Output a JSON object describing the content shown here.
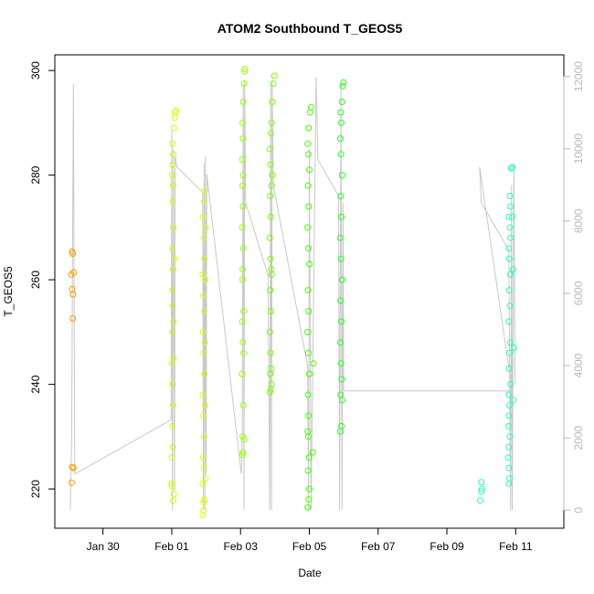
{
  "chart_data": {
    "type": "scatter",
    "title": "ATOM2 Southbound T_GEOS5",
    "xlabel": "Date",
    "ylabel": "T_GEOS5",
    "x_unit": "days",
    "x_ticks": [
      {
        "value": 30,
        "label": "Jan 30"
      },
      {
        "value": 32,
        "label": "Feb 01"
      },
      {
        "value": 34,
        "label": "Feb 03"
      },
      {
        "value": 36,
        "label": "Feb 05"
      },
      {
        "value": 38,
        "label": "Feb 07"
      },
      {
        "value": 40,
        "label": "Feb 09"
      },
      {
        "value": 42,
        "label": "Feb 11"
      }
    ],
    "xlim": [
      28.6,
      43.4
    ],
    "ylim": [
      212.5,
      303
    ],
    "y_ticks": [
      220,
      240,
      260,
      280,
      300
    ],
    "y2lim": [
      -500,
      12600
    ],
    "y2_ticks": [
      0,
      2000,
      4000,
      6000,
      8000,
      10000,
      12000
    ],
    "y2_color": "#b8b8b8",
    "grid": false,
    "series": [
      {
        "color": "#ff9900",
        "points": [
          [
            29.1,
            265.4
          ],
          [
            29.12,
            265.0
          ],
          [
            29.08,
            261.0
          ],
          [
            29.15,
            261.4
          ],
          [
            29.1,
            258.2
          ],
          [
            29.13,
            257.2
          ],
          [
            29.12,
            252.6
          ],
          [
            29.1,
            224.2
          ],
          [
            29.14,
            224.0
          ],
          [
            29.09,
            221.2
          ]
        ]
      },
      {
        "color": "#ccff00",
        "points": [
          [
            31.99,
            221
          ],
          [
            32.01,
            220.5
          ],
          [
            32.0,
            226
          ],
          [
            32.03,
            228
          ],
          [
            32.02,
            232
          ],
          [
            32.04,
            236
          ],
          [
            32.0,
            244
          ],
          [
            32.05,
            245
          ],
          [
            32.02,
            250
          ],
          [
            32.03,
            255
          ],
          [
            32.01,
            258
          ],
          [
            32.04,
            262
          ],
          [
            32.02,
            266
          ],
          [
            32.05,
            270
          ],
          [
            32.03,
            275
          ],
          [
            32.01,
            280
          ],
          [
            32.04,
            284
          ],
          [
            32.02,
            286
          ],
          [
            32.06,
            289
          ],
          [
            32.08,
            291
          ],
          [
            32.1,
            292
          ],
          [
            32.12,
            292.3
          ],
          [
            32.04,
            217.8
          ],
          [
            32.06,
            219
          ],
          [
            32.03,
            240
          ],
          [
            32.05,
            252
          ],
          [
            32.07,
            264
          ],
          [
            32.04,
            278
          ],
          [
            32.02,
            282
          ]
        ]
      },
      {
        "color": "#ddff00",
        "points": [
          [
            32.9,
            215
          ],
          [
            32.92,
            216
          ],
          [
            32.95,
            218
          ],
          [
            32.9,
            221
          ],
          [
            32.93,
            224
          ],
          [
            32.91,
            226
          ],
          [
            32.94,
            230
          ],
          [
            32.92,
            234
          ],
          [
            32.9,
            238
          ],
          [
            32.95,
            242
          ],
          [
            32.93,
            246
          ],
          [
            32.91,
            250
          ],
          [
            32.94,
            254
          ],
          [
            32.92,
            257
          ],
          [
            32.9,
            261
          ],
          [
            32.95,
            264
          ],
          [
            32.93,
            268
          ],
          [
            32.91,
            272
          ],
          [
            32.94,
            275
          ],
          [
            32.96,
            277
          ],
          [
            32.92,
            217.5
          ],
          [
            32.98,
            222
          ],
          [
            32.97,
            236
          ],
          [
            32.96,
            248
          ],
          [
            32.97,
            260
          ],
          [
            32.98,
            270
          ]
        ]
      },
      {
        "color": "#99ff00",
        "points": [
          [
            34.05,
            226.5
          ],
          [
            34.07,
            227
          ],
          [
            34.1,
            229.5
          ],
          [
            34.06,
            230
          ],
          [
            34.08,
            236
          ],
          [
            34.04,
            242
          ],
          [
            34.07,
            248
          ],
          [
            34.05,
            252
          ],
          [
            34.09,
            254
          ],
          [
            34.06,
            260
          ],
          [
            34.08,
            266
          ],
          [
            34.05,
            270
          ],
          [
            34.07,
            274
          ],
          [
            34.06,
            278
          ],
          [
            34.08,
            280
          ],
          [
            34.05,
            283
          ],
          [
            34.07,
            287
          ],
          [
            34.06,
            290
          ],
          [
            34.08,
            294
          ],
          [
            34.1,
            297.5
          ],
          [
            34.12,
            299.8
          ],
          [
            34.13,
            300.3
          ],
          [
            34.06,
            262
          ],
          [
            34.09,
            246
          ]
        ]
      },
      {
        "color": "#77ff00",
        "points": [
          [
            34.85,
            238.5
          ],
          [
            34.88,
            239
          ],
          [
            34.9,
            240
          ],
          [
            34.86,
            242
          ],
          [
            34.89,
            243
          ],
          [
            34.87,
            246
          ],
          [
            34.85,
            250
          ],
          [
            34.88,
            254
          ],
          [
            34.86,
            258
          ],
          [
            34.9,
            261
          ],
          [
            34.87,
            264
          ],
          [
            34.85,
            268
          ],
          [
            34.88,
            272
          ],
          [
            34.86,
            276
          ],
          [
            34.9,
            278
          ],
          [
            34.87,
            282
          ],
          [
            34.85,
            285
          ],
          [
            34.88,
            288
          ],
          [
            34.9,
            290
          ],
          [
            34.92,
            294
          ],
          [
            34.95,
            297.5
          ],
          [
            34.98,
            299
          ],
          [
            34.89,
            262
          ],
          [
            34.92,
            280
          ]
        ]
      },
      {
        "color": "#44ff00",
        "points": [
          [
            35.95,
            216.5
          ],
          [
            35.98,
            218
          ],
          [
            36.0,
            220
          ],
          [
            35.96,
            223.5
          ],
          [
            35.99,
            226
          ],
          [
            35.97,
            230
          ],
          [
            35.95,
            231
          ],
          [
            35.98,
            234
          ],
          [
            35.96,
            238
          ],
          [
            36.0,
            242
          ],
          [
            35.97,
            246
          ],
          [
            35.95,
            250
          ],
          [
            35.98,
            254
          ],
          [
            35.96,
            258
          ],
          [
            36.0,
            263
          ],
          [
            35.97,
            266
          ],
          [
            35.95,
            270
          ],
          [
            35.98,
            274
          ],
          [
            35.96,
            278
          ],
          [
            36.0,
            281
          ],
          [
            35.97,
            284
          ],
          [
            35.95,
            286
          ],
          [
            35.98,
            289
          ],
          [
            36.02,
            292
          ],
          [
            36.05,
            293
          ],
          [
            36.1,
            227
          ],
          [
            36.12,
            244
          ]
        ]
      },
      {
        "color": "#22ff22",
        "points": [
          [
            36.9,
            231
          ],
          [
            36.93,
            232
          ],
          [
            36.95,
            237
          ],
          [
            36.91,
            238
          ],
          [
            36.94,
            241
          ],
          [
            36.92,
            244
          ],
          [
            36.9,
            248
          ],
          [
            36.93,
            252
          ],
          [
            36.91,
            256
          ],
          [
            36.95,
            260
          ],
          [
            36.92,
            264
          ],
          [
            36.9,
            268
          ],
          [
            36.93,
            272
          ],
          [
            36.91,
            276
          ],
          [
            36.95,
            280
          ],
          [
            36.92,
            284
          ],
          [
            36.9,
            287
          ],
          [
            36.93,
            290
          ],
          [
            36.91,
            292
          ],
          [
            36.95,
            294
          ],
          [
            36.97,
            297
          ],
          [
            36.99,
            297.7
          ]
        ]
      },
      {
        "color": "#22ffbb",
        "points": [
          [
            40.97,
            217.8
          ],
          [
            41.0,
            219.5
          ],
          [
            41.02,
            220
          ],
          [
            41.0,
            221.3
          ],
          [
            41.8,
            221
          ],
          [
            41.82,
            222
          ],
          [
            41.8,
            224
          ],
          [
            41.78,
            226
          ],
          [
            41.8,
            228
          ],
          [
            41.83,
            230
          ],
          [
            41.79,
            232
          ],
          [
            41.8,
            234
          ],
          [
            41.82,
            236
          ],
          [
            41.8,
            238
          ],
          [
            41.85,
            240
          ],
          [
            41.8,
            243
          ],
          [
            41.82,
            246
          ],
          [
            41.84,
            248
          ],
          [
            41.8,
            252
          ],
          [
            41.83,
            255
          ],
          [
            41.81,
            258
          ],
          [
            41.84,
            261
          ],
          [
            41.82,
            264
          ],
          [
            41.8,
            266
          ],
          [
            41.85,
            268
          ],
          [
            41.83,
            270
          ],
          [
            41.8,
            272
          ],
          [
            41.85,
            274
          ],
          [
            41.83,
            276
          ],
          [
            41.9,
            272
          ],
          [
            41.92,
            262
          ],
          [
            41.95,
            247
          ],
          [
            41.93,
            237
          ],
          [
            41.87,
            281.3
          ],
          [
            41.9,
            281.5
          ]
        ]
      }
    ],
    "line_series": {
      "axis": "right",
      "color": "#c8c8c8",
      "points": [
        [
          29.05,
          0
        ],
        [
          29.09,
          2000
        ],
        [
          29.14,
          11800
        ],
        [
          29.18,
          1000
        ],
        [
          31.98,
          2500
        ],
        [
          32.0,
          10500
        ],
        [
          32.02,
          0
        ],
        [
          32.05,
          10000
        ],
        [
          32.08,
          500
        ],
        [
          32.1,
          9800
        ],
        [
          32.15,
          9500
        ],
        [
          32.9,
          8800
        ],
        [
          32.92,
          0
        ],
        [
          32.94,
          9600
        ],
        [
          32.96,
          0
        ],
        [
          32.98,
          9800
        ],
        [
          33.0,
          1000
        ],
        [
          33.02,
          9300
        ],
        [
          34.02,
          1000
        ],
        [
          34.05,
          2000
        ],
        [
          34.08,
          11800
        ],
        [
          34.1,
          0
        ],
        [
          34.12,
          11900
        ],
        [
          34.15,
          8500
        ],
        [
          34.8,
          6500
        ],
        [
          34.85,
          0
        ],
        [
          34.88,
          11800
        ],
        [
          34.9,
          0
        ],
        [
          34.92,
          11900
        ],
        [
          34.95,
          9000
        ],
        [
          35.95,
          4000
        ],
        [
          35.98,
          0
        ],
        [
          36.0,
          10000
        ],
        [
          36.05,
          0
        ],
        [
          36.2,
          12000
        ],
        [
          36.25,
          9700
        ],
        [
          36.85,
          8700
        ],
        [
          36.88,
          0
        ],
        [
          36.92,
          11800
        ],
        [
          36.95,
          0
        ],
        [
          36.98,
          8500
        ],
        [
          37.0,
          3300
        ],
        [
          41.9,
          3300
        ],
        [
          40.95,
          9500
        ],
        [
          41.0,
          8500
        ],
        [
          41.8,
          7200
        ],
        [
          41.85,
          0
        ],
        [
          41.88,
          9000
        ],
        [
          41.9,
          0
        ],
        [
          41.95,
          9600
        ],
        [
          41.98,
          3500
        ]
      ]
    }
  }
}
